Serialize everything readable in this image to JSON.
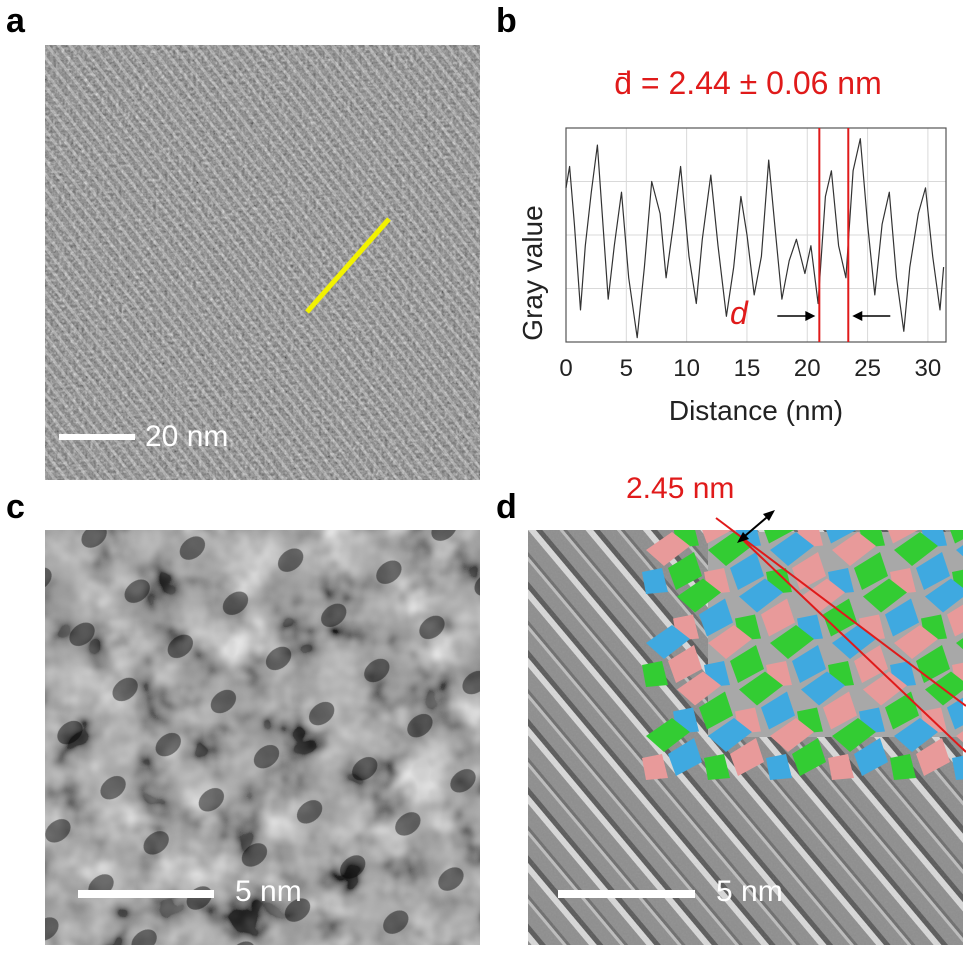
{
  "panels": {
    "a": {
      "letter": "a",
      "scale_label": "20 nm"
    },
    "b": {
      "letter": "b",
      "title": "d̄ = 2.44 ± 0.06 nm",
      "d_label": "d"
    },
    "c": {
      "letter": "c",
      "scale_label": "5 nm"
    },
    "d": {
      "letter": "d",
      "scale_label": "5 nm",
      "spacing_label": "2.45 nm"
    }
  },
  "colors": {
    "annotation_red": "#e01a1a",
    "line_yellow": "#f2f200",
    "inset_green": "#33cc33",
    "inset_blue": "#3fa9e0",
    "inset_pink": "#e89a9a"
  },
  "chart_data": {
    "type": "line",
    "title": "d̄ = 2.44 ± 0.06 nm",
    "xlabel": "Distance (nm)",
    "ylabel": "Gray value",
    "xlim": [
      0,
      31.5
    ],
    "ylim": [
      0,
      1
    ],
    "xticks": [
      "0",
      "5",
      "10",
      "15",
      "20",
      "25",
      "30"
    ],
    "grid": true,
    "series": [
      {
        "x": [
          0,
          0.3,
          0.7,
          1.2,
          1.6,
          2.1,
          2.6,
          3.0,
          3.5,
          4.0,
          4.6,
          5.2,
          5.9,
          6.5,
          7.1,
          7.8,
          8.3,
          8.9,
          9.5,
          10.2,
          10.8,
          11.3,
          12.0,
          12.6,
          13.3,
          13.9,
          14.5,
          15.0,
          15.6,
          16.2,
          16.8,
          17.3,
          17.9,
          18.5,
          19.1,
          19.8,
          20.3,
          20.9,
          21.5,
          22.0,
          22.6,
          23.2,
          23.8,
          24.4,
          25.0,
          25.6,
          26.2,
          26.8,
          27.4,
          28.0,
          28.5,
          29.2,
          29.8,
          30.4,
          31.0,
          31.3
        ],
        "y": [
          0.72,
          0.82,
          0.55,
          0.15,
          0.45,
          0.7,
          0.92,
          0.6,
          0.2,
          0.45,
          0.7,
          0.3,
          0.02,
          0.35,
          0.75,
          0.6,
          0.3,
          0.55,
          0.82,
          0.4,
          0.18,
          0.48,
          0.78,
          0.45,
          0.12,
          0.35,
          0.68,
          0.5,
          0.22,
          0.4,
          0.85,
          0.55,
          0.2,
          0.38,
          0.48,
          0.32,
          0.45,
          0.18,
          0.68,
          0.8,
          0.45,
          0.3,
          0.8,
          0.95,
          0.55,
          0.22,
          0.55,
          0.7,
          0.3,
          0.05,
          0.35,
          0.6,
          0.72,
          0.4,
          0.15,
          0.35
        ]
      }
    ],
    "markers": {
      "red_lines_x": [
        21.0,
        23.4
      ]
    }
  }
}
